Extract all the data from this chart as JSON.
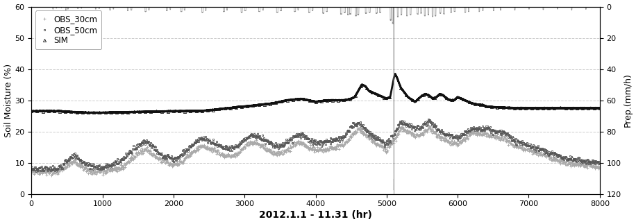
{
  "title": "2012.1.1 - 11.31 (hr)",
  "ylabel_left": "Soil Moisture (%)",
  "ylabel_right": "Prep.(mm/h)",
  "xlim": [
    0,
    8000
  ],
  "ylim_left": [
    0,
    60
  ],
  "ylim_right": [
    0,
    120
  ],
  "yticks_left": [
    0,
    10,
    20,
    30,
    40,
    50,
    60
  ],
  "yticks_right": [
    0,
    20,
    40,
    60,
    80,
    100,
    120
  ],
  "xticks": [
    0,
    1000,
    2000,
    3000,
    4000,
    5000,
    6000,
    7000,
    8000
  ],
  "legend_labels": [
    "OBS_30cm",
    "OBS_50cm",
    "SIM"
  ],
  "color_obs30": "#aaaaaa",
  "color_obs50": "#555555",
  "color_sim": "#111111",
  "color_precip": "#888888",
  "grid_color": "#cccccc",
  "background": "#ffffff",
  "sim_knots_x": [
    0,
    200,
    400,
    600,
    800,
    1000,
    1200,
    1400,
    1600,
    1800,
    2000,
    2200,
    2400,
    2500,
    2600,
    2700,
    2800,
    2900,
    3000,
    3200,
    3400,
    3500,
    3600,
    3700,
    3800,
    4000,
    4100,
    4200,
    4300,
    4400,
    4450,
    4500,
    4550,
    4600,
    4650,
    4700,
    4750,
    4800,
    4900,
    5000,
    5050,
    5100,
    5120,
    5150,
    5200,
    5300,
    5400,
    5450,
    5500,
    5550,
    5600,
    5650,
    5700,
    5750,
    5800,
    5850,
    5900,
    5950,
    6000,
    6050,
    6100,
    6150,
    6200,
    6250,
    6300,
    6350,
    6400,
    6500,
    6600,
    6700,
    6800,
    6900,
    7000,
    7500,
    8000
  ],
  "sim_knots_y": [
    26.5,
    26.5,
    26.5,
    26.2,
    26.0,
    26.0,
    26.1,
    26.2,
    26.3,
    26.4,
    26.5,
    26.5,
    26.6,
    26.8,
    27.0,
    27.3,
    27.5,
    27.8,
    28.0,
    28.5,
    29.0,
    29.5,
    30.0,
    30.2,
    30.5,
    29.5,
    29.8,
    30.0,
    30.0,
    30.0,
    30.2,
    30.5,
    31.0,
    33.0,
    35.0,
    34.5,
    33.0,
    32.5,
    31.5,
    30.5,
    31.0,
    37.0,
    38.5,
    37.0,
    34.0,
    31.0,
    29.5,
    30.5,
    31.5,
    32.0,
    31.5,
    30.5,
    31.0,
    32.0,
    31.5,
    30.5,
    30.0,
    30.0,
    31.0,
    30.5,
    30.0,
    29.5,
    29.0,
    28.8,
    28.5,
    28.5,
    28.0,
    27.8,
    27.7,
    27.6,
    27.5,
    27.5,
    27.5,
    27.5,
    27.5
  ],
  "obs30_base_x": [
    0,
    300,
    400,
    500,
    600,
    700,
    800,
    900,
    1000,
    1100,
    1200,
    1300,
    1400,
    1500,
    1600,
    1700,
    1800,
    2000,
    2100,
    2200,
    2300,
    2400,
    2500,
    2600,
    2700,
    2800,
    2900,
    3000,
    3100,
    3200,
    3300,
    3400,
    3500,
    3600,
    3700,
    3800,
    3900,
    4000,
    4100,
    4200,
    4300,
    4400,
    4500,
    4600,
    4800,
    5000,
    5100,
    5200,
    5300,
    5400,
    5500,
    5600,
    5700,
    5800,
    5900,
    6000,
    6200,
    6400,
    6600,
    6700,
    6800,
    7000,
    7200,
    7500,
    8000
  ],
  "obs30_base_y": [
    7.0,
    7.0,
    7.5,
    9.0,
    10.5,
    9.0,
    7.5,
    7.0,
    7.0,
    7.5,
    8.0,
    9.0,
    11.0,
    13.0,
    14.5,
    13.0,
    11.0,
    9.5,
    10.0,
    12.0,
    14.0,
    15.5,
    14.5,
    13.5,
    12.5,
    12.0,
    13.0,
    15.0,
    16.5,
    16.0,
    14.5,
    13.0,
    13.0,
    14.0,
    16.0,
    16.5,
    15.0,
    14.0,
    14.0,
    14.5,
    15.0,
    16.0,
    18.5,
    21.0,
    17.0,
    14.0,
    17.0,
    21.0,
    20.0,
    18.5,
    19.0,
    21.5,
    19.0,
    17.5,
    16.5,
    16.0,
    19.5,
    19.0,
    18.0,
    17.0,
    15.5,
    14.0,
    12.5,
    10.0,
    8.5
  ],
  "obs50_base_x": [
    0,
    300,
    400,
    500,
    600,
    700,
    800,
    900,
    1000,
    1100,
    1200,
    1300,
    1400,
    1500,
    1600,
    1700,
    1800,
    2000,
    2100,
    2200,
    2300,
    2400,
    2500,
    2600,
    2700,
    2800,
    2900,
    3000,
    3100,
    3200,
    3300,
    3400,
    3500,
    3600,
    3700,
    3800,
    3900,
    4000,
    4100,
    4200,
    4300,
    4400,
    4500,
    4600,
    4800,
    5000,
    5100,
    5200,
    5300,
    5400,
    5500,
    5600,
    5700,
    5800,
    5900,
    6000,
    6200,
    6400,
    6600,
    6700,
    6800,
    7000,
    7200,
    7500,
    8000
  ],
  "obs50_base_y": [
    8.0,
    8.0,
    8.5,
    10.5,
    12.5,
    10.5,
    9.0,
    8.5,
    8.5,
    9.0,
    10.0,
    11.5,
    13.5,
    15.5,
    17.0,
    15.5,
    13.0,
    11.0,
    12.0,
    14.5,
    16.5,
    18.0,
    17.0,
    16.0,
    15.0,
    14.5,
    15.5,
    17.5,
    19.0,
    18.5,
    17.0,
    15.5,
    15.5,
    16.5,
    18.5,
    19.0,
    17.5,
    16.5,
    16.5,
    17.0,
    17.5,
    18.5,
    21.5,
    23.0,
    18.5,
    16.0,
    19.0,
    23.0,
    22.0,
    21.0,
    21.5,
    23.5,
    21.0,
    19.5,
    18.5,
    18.0,
    21.0,
    21.0,
    20.0,
    19.0,
    17.0,
    15.5,
    14.0,
    11.5,
    10.0
  ],
  "precip_events": [
    [
      300,
      310,
      1.5
    ],
    [
      350,
      355,
      1.0
    ],
    [
      420,
      425,
      0.8
    ],
    [
      480,
      490,
      2.0
    ],
    [
      510,
      520,
      1.5
    ],
    [
      650,
      660,
      1.2
    ],
    [
      700,
      710,
      1.0
    ],
    [
      900,
      910,
      1.5
    ],
    [
      950,
      960,
      1.2
    ],
    [
      1100,
      1115,
      2.0
    ],
    [
      1150,
      1160,
      1.5
    ],
    [
      1350,
      1365,
      2.5
    ],
    [
      1400,
      1415,
      2.0
    ],
    [
      1600,
      1615,
      3.0
    ],
    [
      1650,
      1660,
      2.0
    ],
    [
      1900,
      1915,
      2.5
    ],
    [
      1950,
      1960,
      1.8
    ],
    [
      2100,
      2120,
      3.0
    ],
    [
      2150,
      2165,
      2.0
    ],
    [
      2400,
      2420,
      3.5
    ],
    [
      2450,
      2460,
      2.5
    ],
    [
      2700,
      2720,
      3.0
    ],
    [
      2750,
      2760,
      2.0
    ],
    [
      2950,
      2970,
      3.5
    ],
    [
      3000,
      3020,
      2.5
    ],
    [
      3200,
      3220,
      3.0
    ],
    [
      3250,
      3265,
      2.0
    ],
    [
      3450,
      3470,
      3.5
    ],
    [
      3500,
      3520,
      2.5
    ],
    [
      3700,
      3720,
      3.0
    ],
    [
      3750,
      3760,
      2.0
    ],
    [
      3900,
      3920,
      3.5
    ],
    [
      3950,
      3965,
      2.5
    ],
    [
      4100,
      4120,
      4.0
    ],
    [
      4150,
      4165,
      3.0
    ],
    [
      4350,
      4370,
      4.5
    ],
    [
      4400,
      4420,
      3.5
    ],
    [
      4450,
      4465,
      5.0
    ],
    [
      4480,
      4500,
      4.5
    ],
    [
      4560,
      4575,
      5.5
    ],
    [
      4590,
      4610,
      5.0
    ],
    [
      4700,
      4720,
      4.0
    ],
    [
      4750,
      4770,
      3.5
    ],
    [
      4850,
      4870,
      4.0
    ],
    [
      4900,
      4920,
      3.5
    ],
    [
      5050,
      5065,
      8.0
    ],
    [
      5080,
      5095,
      10.0
    ],
    [
      5100,
      5105,
      110.0
    ],
    [
      5150,
      5165,
      6.0
    ],
    [
      5200,
      5215,
      5.0
    ],
    [
      5280,
      5295,
      5.5
    ],
    [
      5330,
      5345,
      5.0
    ],
    [
      5430,
      5445,
      4.5
    ],
    [
      5480,
      5495,
      4.0
    ],
    [
      5530,
      5545,
      5.5
    ],
    [
      5580,
      5595,
      5.0
    ],
    [
      5640,
      5655,
      6.0
    ],
    [
      5680,
      5695,
      5.5
    ],
    [
      5750,
      5765,
      4.0
    ],
    [
      5800,
      5815,
      4.5
    ],
    [
      5900,
      5915,
      3.5
    ],
    [
      5950,
      5965,
      3.0
    ],
    [
      6100,
      6115,
      3.5
    ],
    [
      6150,
      6160,
      3.0
    ],
    [
      6300,
      6310,
      3.0
    ],
    [
      6350,
      6360,
      2.5
    ],
    [
      6500,
      6510,
      2.5
    ],
    [
      6600,
      6610,
      2.0
    ],
    [
      6800,
      6810,
      2.0
    ],
    [
      7000,
      7010,
      1.5
    ],
    [
      7200,
      7210,
      1.8
    ],
    [
      7400,
      7410,
      1.5
    ],
    [
      7600,
      7610,
      2.0
    ],
    [
      7800,
      7810,
      1.5
    ]
  ]
}
